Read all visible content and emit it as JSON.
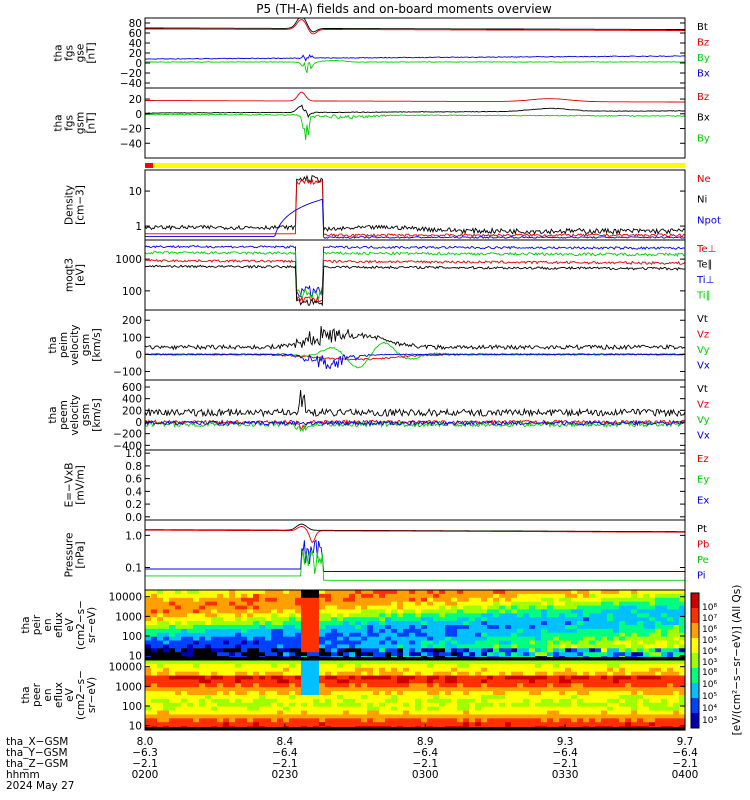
{
  "title": "P5 (TH-A) fields and on-board moments overview",
  "panels": [
    {
      "id": "fgs_gse",
      "ylabel": [
        "tha",
        "fgs",
        "gse",
        "[nT]"
      ],
      "ticks": [
        "80",
        "60",
        "40",
        "20",
        "0",
        "−20",
        "−40"
      ],
      "legend": [
        {
          "text": "Bt",
          "color": "#000000"
        },
        {
          "text": "Bz",
          "color": "#e00000"
        },
        {
          "text": "By",
          "color": "#00d000"
        },
        {
          "text": "Bx",
          "color": "#0000e0"
        }
      ]
    },
    {
      "id": "fgs_gsm",
      "ylabel": [
        "tha",
        "fgs",
        "gsm",
        "[nT]"
      ],
      "ticks": [
        "20",
        "0",
        "−20",
        "−40"
      ],
      "legend": [
        {
          "text": "Bz",
          "color": "#e00000"
        },
        {
          "text": "Bx",
          "color": "#000000"
        },
        {
          "text": "By",
          "color": "#00d000"
        }
      ]
    },
    {
      "id": "density",
      "ylabel": [
        "Density",
        "[cm−3]"
      ],
      "ticks": [
        "10",
        "1"
      ],
      "legend": [
        {
          "text": "Ne",
          "color": "#e00000"
        },
        {
          "text": "Ni",
          "color": "#000000"
        },
        {
          "text": "Npot",
          "color": "#0000e0"
        }
      ]
    },
    {
      "id": "temp",
      "ylabel": [
        "moqt3",
        "[eV]"
      ],
      "ticks": [
        "1000",
        "100"
      ],
      "legend": [
        {
          "text": "Te⊥",
          "color": "#e00000"
        },
        {
          "text": "Te∥",
          "color": "#000000"
        },
        {
          "text": "Ti⊥",
          "color": "#0000e0"
        },
        {
          "text": "Ti∥",
          "color": "#00d000"
        }
      ]
    },
    {
      "id": "vi",
      "ylabel": [
        "tha",
        "peim",
        "velocity",
        "gsm",
        "[km/s]"
      ],
      "ticks": [
        "200",
        "100",
        "0",
        "−100"
      ],
      "legend": [
        {
          "text": "Vt",
          "color": "#000000"
        },
        {
          "text": "Vz",
          "color": "#e00000"
        },
        {
          "text": "Vy",
          "color": "#00d000"
        },
        {
          "text": "Vx",
          "color": "#0000e0"
        }
      ]
    },
    {
      "id": "ve",
      "ylabel": [
        "tha",
        "peem",
        "velocity",
        "gsm",
        "[km/s]"
      ],
      "ticks": [
        "600",
        "400",
        "200",
        "0",
        "−200",
        "−400"
      ],
      "legend": [
        {
          "text": "Vt",
          "color": "#000000"
        },
        {
          "text": "Vz",
          "color": "#e00000"
        },
        {
          "text": "Vy",
          "color": "#00d000"
        },
        {
          "text": "Vx",
          "color": "#0000e0"
        }
      ]
    },
    {
      "id": "efield",
      "ylabel": [
        "E=−VxB",
        "[mV/m]"
      ],
      "ticks": [
        "1.0",
        "0.8",
        "0.6",
        "0.4",
        "0.2",
        "0.0"
      ],
      "legend": [
        {
          "text": "Ez",
          "color": "#e00000"
        },
        {
          "text": "Ey",
          "color": "#00d000"
        },
        {
          "text": "Ex",
          "color": "#0000e0"
        }
      ]
    },
    {
      "id": "pressure",
      "ylabel": [
        "Pressure",
        "[nPa]"
      ],
      "ticks": [
        "1.0",
        "0.1"
      ],
      "legend": [
        {
          "text": "Pt",
          "color": "#000000"
        },
        {
          "text": "Pb",
          "color": "#e00000"
        },
        {
          "text": "Pe",
          "color": "#00d000"
        },
        {
          "text": "Pi",
          "color": "#0000e0"
        }
      ]
    },
    {
      "id": "peir",
      "ylabel": [
        "tha",
        "peir",
        "en",
        "eflux",
        "eV",
        "(cm2−s−",
        "sr−eV)"
      ],
      "ticks": [
        "10000",
        "1000",
        "100",
        "10"
      ]
    },
    {
      "id": "peer",
      "ylabel": [
        "tha",
        "peer",
        "en",
        "eflux",
        "eV",
        "(cm2−s−",
        "sr−eV)"
      ],
      "ticks": [
        "10000",
        "1000",
        "100",
        "10"
      ]
    }
  ],
  "colorbar": {
    "ticks": [
      "10⁸",
      "10⁷",
      "10⁶",
      "10⁵",
      "10⁴",
      "10³"
    ],
    "ticks2": [
      "10⁸",
      "10⁶",
      "10⁵",
      "10⁴",
      "10³"
    ],
    "label": "[eV/(cm²−s−sr−eV)] (All Qs)"
  },
  "xaxis": {
    "rows": [
      {
        "label": "tha_X−GSM",
        "values": [
          "8.0",
          "8.4",
          "8.9",
          "9.3",
          "9.7"
        ]
      },
      {
        "label": "tha_Y−GSM",
        "values": [
          "−6.3",
          "−6.4",
          "−6.4",
          "−6.4",
          "−6.4"
        ]
      },
      {
        "label": "tha_Z−GSM",
        "values": [
          "−2.1",
          "−2.1",
          "−2.1",
          "−2.1",
          "−2.1"
        ]
      },
      {
        "label": "hhmm",
        "values": [
          "0200",
          "0230",
          "0300",
          "0330",
          "0400"
        ]
      }
    ],
    "date": "2024 May 27"
  },
  "chart_data": {
    "type": "line",
    "title": "P5 (TH-A) fields and on-board moments overview",
    "x": [
      "0200",
      "0230",
      "0300",
      "0330",
      "0400"
    ],
    "series": [
      {
        "name": "Bt",
        "values": [
          70,
          68,
          67,
          67,
          67
        ]
      },
      {
        "name": "Bz",
        "values": [
          68,
          66,
          65,
          64,
          64
        ]
      },
      {
        "name": "By",
        "values": [
          2,
          5,
          2,
          2,
          1
        ]
      },
      {
        "name": "Bx",
        "values": [
          8,
          12,
          12,
          14,
          14
        ]
      }
    ]
  }
}
